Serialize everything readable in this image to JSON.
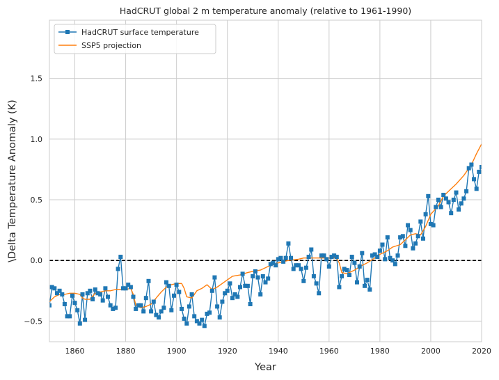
{
  "chart_data": {
    "type": "line",
    "title": "HadCRUT global 2 m temperature anomaly (relative to 1961-1990)",
    "xlabel": "Year",
    "ylabel": "\\Delta Temperature Anomaly (K)",
    "xlim": [
      1850,
      2020
    ],
    "ylim": [
      -0.67,
      1.98
    ],
    "xticks": [
      1860,
      1880,
      1900,
      1920,
      1940,
      1960,
      1980,
      2000,
      2020
    ],
    "yticks": [
      -0.5,
      0.0,
      0.5,
      1.0,
      1.5
    ],
    "xtick_labels": [
      "1860",
      "1880",
      "1900",
      "1920",
      "1940",
      "1960",
      "1980",
      "2000",
      "2020"
    ],
    "ytick_labels": [
      "−0.5",
      "0.0",
      "0.5",
      "1.0",
      "1.5"
    ],
    "grid": true,
    "legend_position": "top-left",
    "reference_line": {
      "y": 0.0,
      "style": "dashed",
      "color": "#000000"
    },
    "series": [
      {
        "name": "HadCRUT surface temperature",
        "color": "#1f77b4",
        "marker": "square",
        "x": [
          1850,
          1851,
          1852,
          1853,
          1854,
          1855,
          1856,
          1857,
          1858,
          1859,
          1860,
          1861,
          1862,
          1863,
          1864,
          1865,
          1866,
          1867,
          1868,
          1869,
          1870,
          1871,
          1872,
          1873,
          1874,
          1875,
          1876,
          1877,
          1878,
          1879,
          1880,
          1881,
          1882,
          1883,
          1884,
          1885,
          1886,
          1887,
          1888,
          1889,
          1890,
          1891,
          1892,
          1893,
          1894,
          1895,
          1896,
          1897,
          1898,
          1899,
          1900,
          1901,
          1902,
          1903,
          1904,
          1905,
          1906,
          1907,
          1908,
          1909,
          1910,
          1911,
          1912,
          1913,
          1914,
          1915,
          1916,
          1917,
          1918,
          1919,
          1920,
          1921,
          1922,
          1923,
          1924,
          1925,
          1926,
          1927,
          1928,
          1929,
          1930,
          1931,
          1932,
          1933,
          1934,
          1935,
          1936,
          1937,
          1938,
          1939,
          1940,
          1941,
          1942,
          1943,
          1944,
          1945,
          1946,
          1947,
          1948,
          1949,
          1950,
          1951,
          1952,
          1953,
          1954,
          1955,
          1956,
          1957,
          1958,
          1959,
          1960,
          1961,
          1962,
          1963,
          1964,
          1965,
          1966,
          1967,
          1968,
          1969,
          1970,
          1971,
          1972,
          1973,
          1974,
          1975,
          1976,
          1977,
          1978,
          1979,
          1980,
          1981,
          1982,
          1983,
          1984,
          1985,
          1986,
          1987,
          1988,
          1989,
          1990,
          1991,
          1992,
          1993,
          1994,
          1995,
          1996,
          1997,
          1998,
          1999,
          2000,
          2001,
          2002,
          2003,
          2004,
          2005,
          2006,
          2007,
          2008,
          2009,
          2010,
          2011,
          2012,
          2013,
          2014,
          2015,
          2016,
          2017,
          2018,
          2019,
          2020
        ],
        "y": [
          -0.37,
          -0.22,
          -0.23,
          -0.27,
          -0.25,
          -0.28,
          -0.36,
          -0.46,
          -0.46,
          -0.29,
          -0.35,
          -0.41,
          -0.52,
          -0.28,
          -0.49,
          -0.27,
          -0.25,
          -0.32,
          -0.24,
          -0.27,
          -0.28,
          -0.33,
          -0.23,
          -0.3,
          -0.37,
          -0.4,
          -0.39,
          -0.07,
          0.03,
          -0.23,
          -0.23,
          -0.2,
          -0.22,
          -0.3,
          -0.4,
          -0.37,
          -0.37,
          -0.42,
          -0.31,
          -0.17,
          -0.42,
          -0.34,
          -0.45,
          -0.47,
          -0.42,
          -0.39,
          -0.18,
          -0.21,
          -0.41,
          -0.29,
          -0.2,
          -0.26,
          -0.4,
          -0.48,
          -0.52,
          -0.38,
          -0.28,
          -0.46,
          -0.5,
          -0.52,
          -0.49,
          -0.54,
          -0.44,
          -0.43,
          -0.25,
          -0.14,
          -0.38,
          -0.47,
          -0.34,
          -0.27,
          -0.25,
          -0.19,
          -0.31,
          -0.28,
          -0.3,
          -0.22,
          -0.11,
          -0.21,
          -0.21,
          -0.36,
          -0.13,
          -0.09,
          -0.14,
          -0.28,
          -0.13,
          -0.18,
          -0.15,
          -0.03,
          -0.02,
          -0.04,
          0.01,
          0.02,
          -0.01,
          0.02,
          0.14,
          0.02,
          -0.07,
          -0.04,
          -0.04,
          -0.07,
          -0.17,
          -0.06,
          0.03,
          0.09,
          -0.13,
          -0.19,
          -0.27,
          0.04,
          0.04,
          0.01,
          -0.05,
          0.03,
          0.04,
          0.03,
          -0.22,
          -0.13,
          -0.07,
          -0.08,
          -0.12,
          0.03,
          -0.02,
          -0.18,
          -0.05,
          0.06,
          -0.21,
          -0.16,
          -0.24,
          0.04,
          0.05,
          0.03,
          0.08,
          0.13,
          0.01,
          0.19,
          0.02,
          0.0,
          -0.03,
          0.04,
          0.19,
          0.2,
          0.12,
          0.29,
          0.25,
          0.1,
          0.14,
          0.2,
          0.32,
          0.18,
          0.38,
          0.53,
          0.3,
          0.29,
          0.44,
          0.5,
          0.44,
          0.54,
          0.51,
          0.48,
          0.39,
          0.5,
          0.56,
          0.42,
          0.47,
          0.51,
          0.57,
          0.76,
          0.79,
          0.67,
          0.59,
          0.73,
          0.77
        ]
      },
      {
        "name": "SSP5 projection",
        "color": "#ff7f0e",
        "marker": "none",
        "x": [
          1850,
          1852,
          1854,
          1856,
          1858,
          1860,
          1862,
          1863,
          1864,
          1866,
          1868,
          1870,
          1872,
          1874,
          1876,
          1878,
          1880,
          1882,
          1883,
          1884,
          1886,
          1888,
          1890,
          1892,
          1894,
          1896,
          1898,
          1900,
          1902,
          1903,
          1904,
          1906,
          1908,
          1910,
          1912,
          1914,
          1916,
          1918,
          1920,
          1922,
          1925,
          1928,
          1930,
          1933,
          1936,
          1940,
          1944,
          1948,
          1950,
          1955,
          1960,
          1963,
          1964,
          1965,
          1967,
          1970,
          1973,
          1975,
          1978,
          1980,
          1983,
          1985,
          1988,
          1990,
          1992,
          1994,
          1996,
          1998,
          2000,
          2003,
          2005,
          2008,
          2010,
          2013,
          2016,
          2018,
          2020
        ],
        "y": [
          -0.34,
          -0.3,
          -0.28,
          -0.28,
          -0.27,
          -0.27,
          -0.28,
          -0.31,
          -0.32,
          -0.32,
          -0.27,
          -0.26,
          -0.25,
          -0.25,
          -0.24,
          -0.24,
          -0.24,
          -0.23,
          -0.28,
          -0.37,
          -0.39,
          -0.38,
          -0.36,
          -0.31,
          -0.26,
          -0.22,
          -0.2,
          -0.19,
          -0.19,
          -0.23,
          -0.3,
          -0.31,
          -0.25,
          -0.23,
          -0.2,
          -0.24,
          -0.22,
          -0.19,
          -0.16,
          -0.13,
          -0.12,
          -0.1,
          -0.09,
          -0.08,
          -0.05,
          -0.02,
          0.0,
          0.01,
          0.02,
          0.02,
          0.02,
          0.02,
          -0.02,
          -0.1,
          -0.11,
          -0.08,
          -0.04,
          -0.02,
          0.02,
          0.05,
          0.08,
          0.11,
          0.13,
          0.17,
          0.21,
          0.22,
          0.21,
          0.28,
          0.38,
          0.45,
          0.53,
          0.59,
          0.63,
          0.7,
          0.79,
          0.88,
          0.96
        ]
      }
    ]
  }
}
